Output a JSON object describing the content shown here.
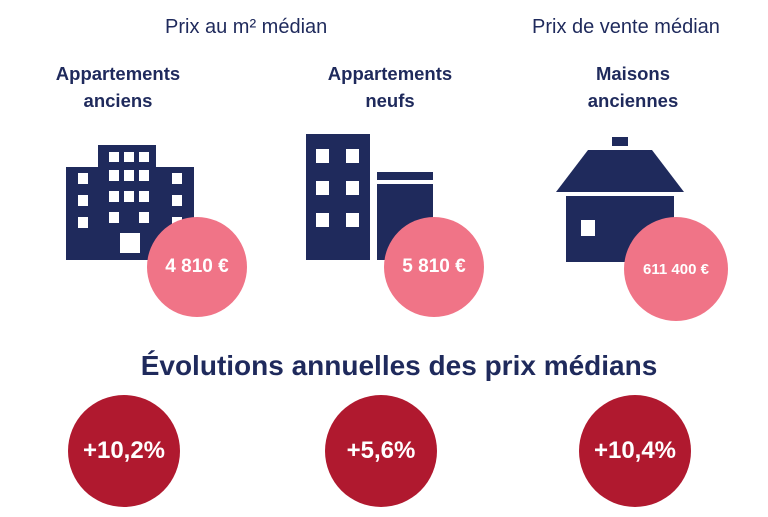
{
  "header": {
    "left": "Prix au m² médian",
    "right": "Prix de vente médian"
  },
  "categories": [
    {
      "label_line1": "Appartements",
      "label_line2": "anciens",
      "icon": "building-icon",
      "price": "4 810 €"
    },
    {
      "label_line1": "Appartements",
      "label_line2": "neufs",
      "icon": "new-buildings-icon",
      "price": "5 810 €"
    },
    {
      "label_line1": "Maisons",
      "label_line2": "anciennes",
      "icon": "house-icon",
      "price": "611 400 €"
    }
  ],
  "evolution": {
    "title": "Évolutions annuelles des prix médians",
    "values": [
      "+10,2%",
      "+5,6%",
      "+10,4%"
    ]
  },
  "colors": {
    "navy": "#1f2a5c",
    "price_circle": "#f07487",
    "evolution_circle": "#b0192f"
  }
}
